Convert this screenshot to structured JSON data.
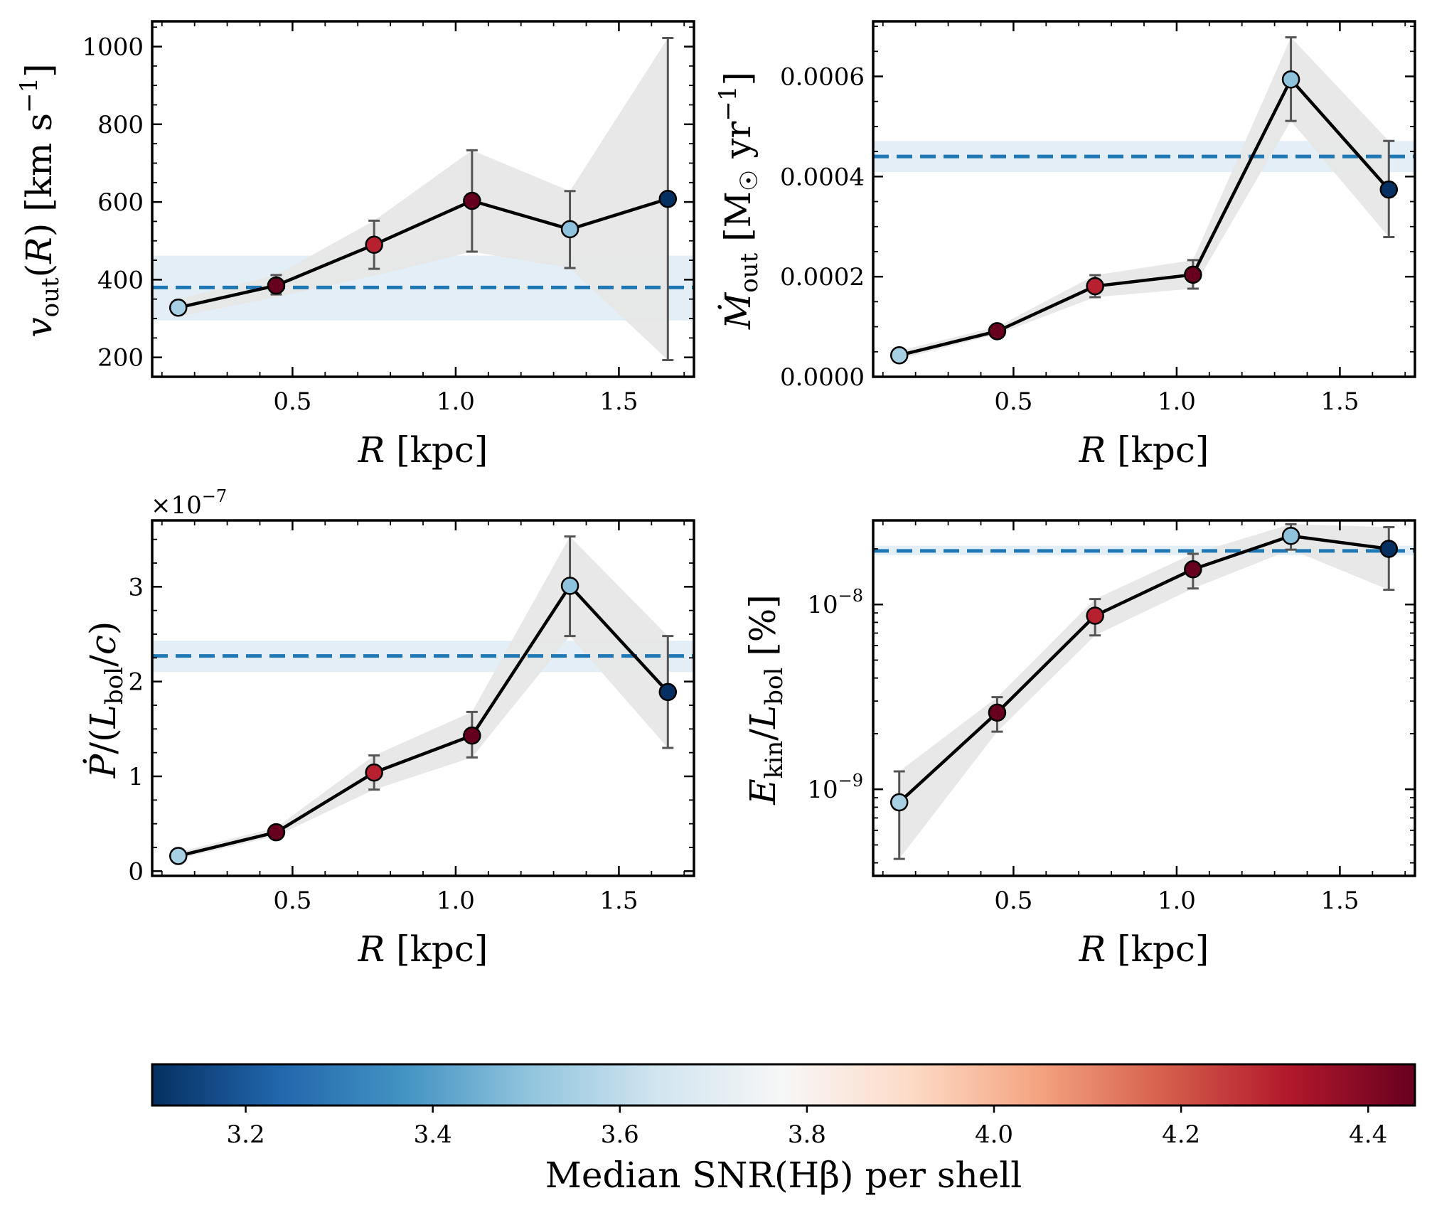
{
  "chart_data": [
    {
      "id": "vout",
      "type": "line",
      "yscale": "linear",
      "ylabel": "v_out(R) [km s^-1]",
      "xlabel": "R [kpc]",
      "xlim": [
        0.07,
        1.73
      ],
      "ylim": [
        150,
        1065
      ],
      "xticks": [
        {
          "v": 0.5,
          "label": "0.5"
        },
        {
          "v": 1.0,
          "label": "1.0"
        },
        {
          "v": 1.5,
          "label": "1.5"
        }
      ],
      "yticks": [
        {
          "v": 200,
          "label": "200"
        },
        {
          "v": 400,
          "label": "400"
        },
        {
          "v": 600,
          "label": "600"
        },
        {
          "v": 800,
          "label": "800"
        },
        {
          "v": 1000,
          "label": "1000"
        }
      ],
      "x": [
        0.15,
        0.45,
        0.75,
        1.05,
        1.35,
        1.65
      ],
      "y": [
        328,
        385,
        490,
        603,
        530,
        608
      ],
      "yerr_low": [
        328,
        362,
        428,
        472,
        430,
        193
      ],
      "yerr_high": [
        328,
        412,
        552,
        733,
        628,
        1022
      ],
      "band_low": [
        305,
        355,
        410,
        472,
        430,
        193
      ],
      "band_high": [
        350,
        412,
        552,
        733,
        628,
        1022
      ],
      "snr": [
        3.55,
        4.45,
        4.3,
        4.45,
        3.5,
        3.1
      ],
      "reference": {
        "value": 380,
        "low": 295,
        "high": 462
      }
    },
    {
      "id": "mdot",
      "type": "line",
      "yscale": "linear",
      "ylabel": "Ṁ_out [M☉ yr^-1]",
      "xlabel": "R [kpc]",
      "xlim": [
        0.07,
        1.73
      ],
      "ylim": [
        0,
        0.00071
      ],
      "xticks": [
        {
          "v": 0.5,
          "label": "0.5"
        },
        {
          "v": 1.0,
          "label": "1.0"
        },
        {
          "v": 1.5,
          "label": "1.5"
        }
      ],
      "yticks": [
        {
          "v": 0,
          "label": "0.0000"
        },
        {
          "v": 0.0002,
          "label": "0.0002"
        },
        {
          "v": 0.0004,
          "label": "0.0004"
        },
        {
          "v": 0.0006,
          "label": "0.0006"
        }
      ],
      "x": [
        0.15,
        0.45,
        0.75,
        1.05,
        1.35,
        1.65
      ],
      "y": [
        4.3e-05,
        9.1e-05,
        0.000181,
        0.000204,
        0.000594,
        0.000374
      ],
      "yerr_low": [
        4.3e-05,
        9.1e-05,
        0.000159,
        0.000176,
        0.000511,
        0.000279
      ],
      "yerr_high": [
        4.3e-05,
        9.1e-05,
        0.000203,
        0.000233,
        0.000678,
        0.000471
      ],
      "band_low": [
        3.5e-05,
        8.5e-05,
        0.000159,
        0.000176,
        0.000511,
        0.000279
      ],
      "band_high": [
        5.2e-05,
        0.0001,
        0.000203,
        0.000233,
        0.000678,
        0.000471
      ],
      "snr": [
        3.55,
        4.45,
        4.3,
        4.45,
        3.5,
        3.1
      ],
      "reference": {
        "value": 0.00044,
        "low": 0.000409,
        "high": 0.000471
      }
    },
    {
      "id": "pdot",
      "type": "line",
      "yscale": "linear",
      "ylabel": "Ṗ/(L_bol/c)",
      "xlabel": "R [kpc]",
      "offset_text": "×10^-7",
      "xlim": [
        0.07,
        1.73
      ],
      "ylim": [
        -0.05,
        3.7
      ],
      "xticks": [
        {
          "v": 0.5,
          "label": "0.5"
        },
        {
          "v": 1.0,
          "label": "1.0"
        },
        {
          "v": 1.5,
          "label": "1.5"
        }
      ],
      "yticks": [
        {
          "v": 0,
          "label": "0"
        },
        {
          "v": 1,
          "label": "1"
        },
        {
          "v": 2,
          "label": "2"
        },
        {
          "v": 3,
          "label": "3"
        }
      ],
      "x": [
        0.15,
        0.45,
        0.75,
        1.05,
        1.35,
        1.65
      ],
      "y": [
        0.16,
        0.41,
        1.04,
        1.43,
        3.01,
        1.89
      ],
      "yerr_low": [
        0.16,
        0.41,
        0.86,
        1.2,
        2.48,
        1.3
      ],
      "yerr_high": [
        0.16,
        0.41,
        1.22,
        1.68,
        3.53,
        2.48
      ],
      "band_low": [
        0.13,
        0.37,
        0.86,
        1.2,
        2.48,
        1.3
      ],
      "band_high": [
        0.2,
        0.46,
        1.22,
        1.68,
        3.53,
        2.48
      ],
      "snr": [
        3.55,
        4.45,
        4.3,
        4.45,
        3.5,
        3.1
      ],
      "reference": {
        "value": 2.27,
        "low": 2.1,
        "high": 2.43
      }
    },
    {
      "id": "ekin",
      "type": "line",
      "yscale": "log",
      "ylabel": "E_kin/L_bol [%]",
      "xlabel": "R [kpc]",
      "xlim": [
        0.07,
        1.73
      ],
      "ylim": [
        3.4e-10,
        2.85e-08
      ],
      "xticks": [
        {
          "v": 0.5,
          "label": "0.5"
        },
        {
          "v": 1.0,
          "label": "1.0"
        },
        {
          "v": 1.5,
          "label": "1.5"
        }
      ],
      "yticks": [
        {
          "v": 1e-09,
          "label": "10^-9"
        },
        {
          "v": 1e-08,
          "label": "10^-8"
        }
      ],
      "x": [
        0.15,
        0.45,
        0.75,
        1.05,
        1.35,
        1.65
      ],
      "y": [
        8.5e-10,
        2.6e-09,
        8.7e-09,
        1.55e-08,
        2.35e-08,
        2e-08
      ],
      "yerr_low": [
        4.2e-10,
        2.05e-09,
        6.8e-09,
        1.22e-08,
        1.98e-08,
        1.2e-08
      ],
      "yerr_high": [
        1.25e-09,
        3.15e-09,
        1.07e-08,
        1.88e-08,
        2.72e-08,
        2.62e-08
      ],
      "band_low": [
        4.2e-10,
        2.05e-09,
        6.8e-09,
        1.22e-08,
        1.98e-08,
        1.2e-08
      ],
      "band_high": [
        1.25e-09,
        3.15e-09,
        1.07e-08,
        1.88e-08,
        2.72e-08,
        2.62e-08
      ],
      "snr": [
        3.55,
        4.45,
        4.3,
        4.45,
        3.5,
        3.1
      ],
      "reference": {
        "value": 1.95e-08,
        "low": 1.85e-08,
        "high": 2.08e-08
      }
    }
  ],
  "colorbar": {
    "label": "Median SNR(Hβ) per shell",
    "range": [
      3.1,
      4.45
    ],
    "ticks": [
      {
        "v": 3.2,
        "label": "3.2"
      },
      {
        "v": 3.4,
        "label": "3.4"
      },
      {
        "v": 3.6,
        "label": "3.6"
      },
      {
        "v": 3.8,
        "label": "3.8"
      },
      {
        "v": 4.0,
        "label": "4.0"
      },
      {
        "v": 4.2,
        "label": "4.2"
      },
      {
        "v": 4.4,
        "label": "4.4"
      }
    ],
    "colormap": [
      "#053061",
      "#2166ac",
      "#4393c3",
      "#92c5de",
      "#d1e5f0",
      "#f7f7f7",
      "#fddbc7",
      "#f4a582",
      "#d6604d",
      "#b2182b",
      "#67001f"
    ]
  },
  "colors": {
    "reference_line": "#1f77b4",
    "band": "#e6e6e6",
    "line": "#000000",
    "errorbar": "#555555"
  }
}
